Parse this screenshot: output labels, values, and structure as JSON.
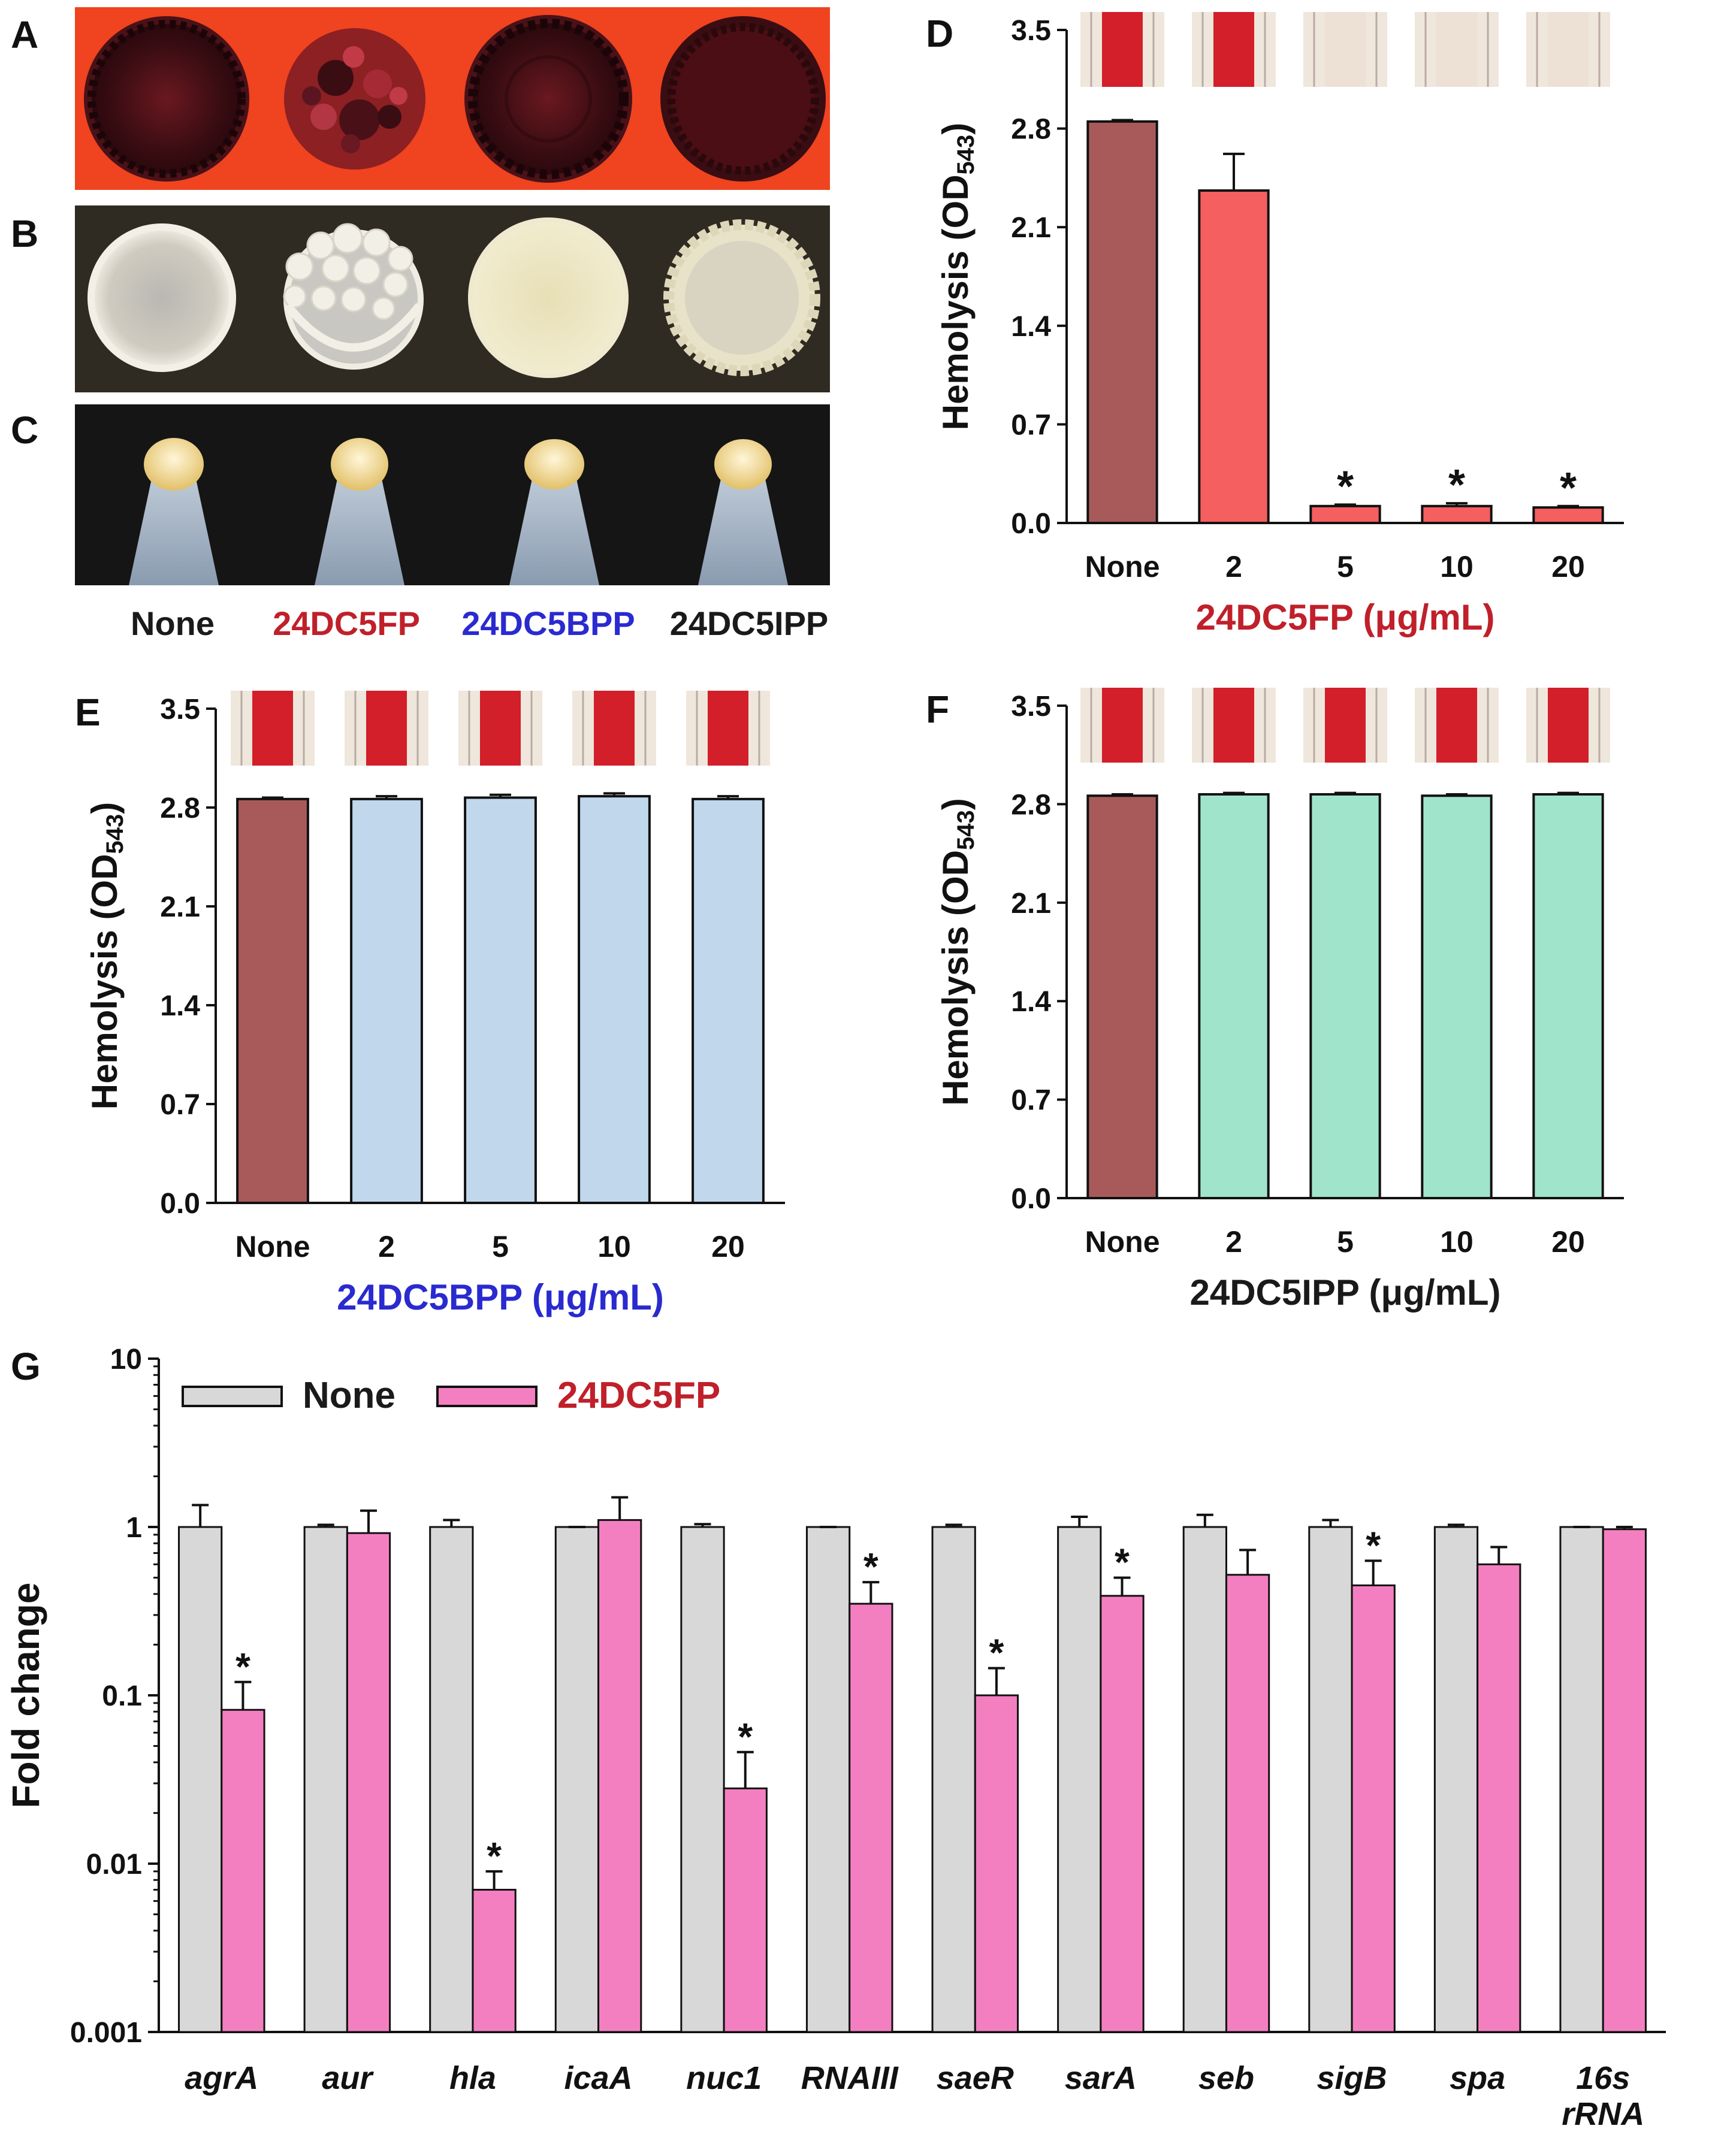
{
  "panels": {
    "A": {
      "letter": "A",
      "bg": "#f0431f",
      "colony": "#3a0d12"
    },
    "B": {
      "letter": "B",
      "bg": "#2f2a22",
      "colony": "#ddd8c8"
    },
    "C": {
      "letter": "C",
      "bg": "#151515",
      "colony": "#eddca0"
    }
  },
  "photo_labels": [
    {
      "text": "None",
      "color": "#1a1a1a"
    },
    {
      "text": "24DC5FP",
      "color": "#c0202a"
    },
    {
      "text": "24DC5BPP",
      "color": "#2a2ad0"
    },
    {
      "text": "24DC5IPP",
      "color": "#1a1a1a"
    }
  ],
  "chart_data": [
    {
      "panel": "D",
      "type": "bar",
      "ylabel": "Hemolysis (OD543)",
      "ylabel_main": "Hemolysis (OD",
      "ylabel_sub": "543",
      "ylabel_close": ")",
      "xlabel": "24DC5FP (μg/mL)",
      "xlabel_color": "#c0202a",
      "ylim": [
        0.0,
        3.5
      ],
      "yticks": [
        "0.0",
        "0.7",
        "1.4",
        "2.1",
        "2.8",
        "3.5"
      ],
      "categories": [
        "None",
        "2",
        "5",
        "10",
        "20"
      ],
      "values": [
        2.85,
        2.36,
        0.12,
        0.12,
        0.11
      ],
      "errors": [
        0.01,
        0.26,
        0.01,
        0.02,
        0.01
      ],
      "significant": [
        false,
        false,
        true,
        true,
        true
      ],
      "bar_colors": [
        "#a85a5a",
        "#f55f5f",
        "#f55f5f",
        "#f55f5f",
        "#f55f5f"
      ],
      "tube_colors": [
        "#d21f2a",
        "#d21f2a",
        "#ede0d4",
        "#ede0d4",
        "#ede0d4"
      ]
    },
    {
      "panel": "E",
      "type": "bar",
      "ylabel": "Hemolysis (OD543)",
      "ylabel_main": "Hemolysis (OD",
      "ylabel_sub": "543",
      "ylabel_close": ")",
      "xlabel": "24DC5BPP (μg/mL)",
      "xlabel_color": "#2a2ad0",
      "ylim": [
        0.0,
        3.5
      ],
      "yticks": [
        "0.0",
        "0.7",
        "1.4",
        "2.1",
        "2.8",
        "3.5"
      ],
      "categories": [
        "None",
        "2",
        "5",
        "10",
        "20"
      ],
      "values": [
        2.86,
        2.86,
        2.87,
        2.88,
        2.86
      ],
      "errors": [
        0.01,
        0.02,
        0.02,
        0.02,
        0.02
      ],
      "significant": [
        false,
        false,
        false,
        false,
        false
      ],
      "bar_colors": [
        "#a85a5a",
        "#c0d7ec",
        "#c0d7ec",
        "#c0d7ec",
        "#c0d7ec"
      ],
      "tube_colors": [
        "#d21f2a",
        "#d21f2a",
        "#d21f2a",
        "#d21f2a",
        "#d21f2a"
      ]
    },
    {
      "panel": "F",
      "type": "bar",
      "ylabel": "Hemolysis (OD543)",
      "ylabel_main": "Hemolysis (OD",
      "ylabel_sub": "543",
      "ylabel_close": ")",
      "xlabel": "24DC5IPP (μg/mL)",
      "xlabel_color": "#1a1a1a",
      "ylim": [
        0.0,
        3.5
      ],
      "yticks": [
        "0.0",
        "0.7",
        "1.4",
        "2.1",
        "2.8",
        "3.5"
      ],
      "categories": [
        "None",
        "2",
        "5",
        "10",
        "20"
      ],
      "values": [
        2.86,
        2.87,
        2.87,
        2.86,
        2.87
      ],
      "errors": [
        0.01,
        0.01,
        0.01,
        0.01,
        0.01
      ],
      "significant": [
        false,
        false,
        false,
        false,
        false
      ],
      "bar_colors": [
        "#a85a5a",
        "#a0e4cb",
        "#a0e4cb",
        "#a0e4cb",
        "#a0e4cb"
      ],
      "tube_colors": [
        "#d21f2a",
        "#d21f2a",
        "#d21f2a",
        "#d21f2a",
        "#d21f2a"
      ]
    },
    {
      "panel": "G",
      "type": "bar",
      "yscale": "log",
      "ylabel": "Fold change",
      "ylim": [
        0.001,
        10
      ],
      "yticks": [
        "0.001",
        "0.01",
        "0.1",
        "1",
        "10"
      ],
      "categories": [
        "agrA",
        "aur",
        "hla",
        "icaA",
        "nuc1",
        "RNAIII",
        "saeR",
        "sarA",
        "seb",
        "sigB",
        "spa",
        "16s rRNA"
      ],
      "series": [
        {
          "name": "None",
          "color": "#d8d8d8",
          "label_color": "#1a1a1a",
          "values": [
            1,
            1,
            1,
            1,
            1,
            1,
            1,
            1,
            1,
            1,
            1,
            1
          ],
          "error_tops": [
            1.35,
            1.03,
            1.1,
            1.0,
            1.04,
            1.0,
            1.03,
            1.15,
            1.18,
            1.1,
            1.03,
            1.0
          ],
          "significant": [
            false,
            false,
            false,
            false,
            false,
            false,
            false,
            false,
            false,
            false,
            false,
            false
          ]
        },
        {
          "name": "24DC5FP",
          "color": "#f47fc0",
          "label_color": "#c0202a",
          "values": [
            0.082,
            0.92,
            0.007,
            1.1,
            0.028,
            0.35,
            0.1,
            0.39,
            0.52,
            0.45,
            0.6,
            0.97
          ],
          "error_tops": [
            0.12,
            1.25,
            0.009,
            1.5,
            0.046,
            0.47,
            0.145,
            0.5,
            0.73,
            0.63,
            0.76,
            1.0
          ],
          "significant": [
            true,
            false,
            true,
            false,
            true,
            true,
            true,
            true,
            false,
            true,
            false,
            false
          ]
        }
      ]
    }
  ]
}
